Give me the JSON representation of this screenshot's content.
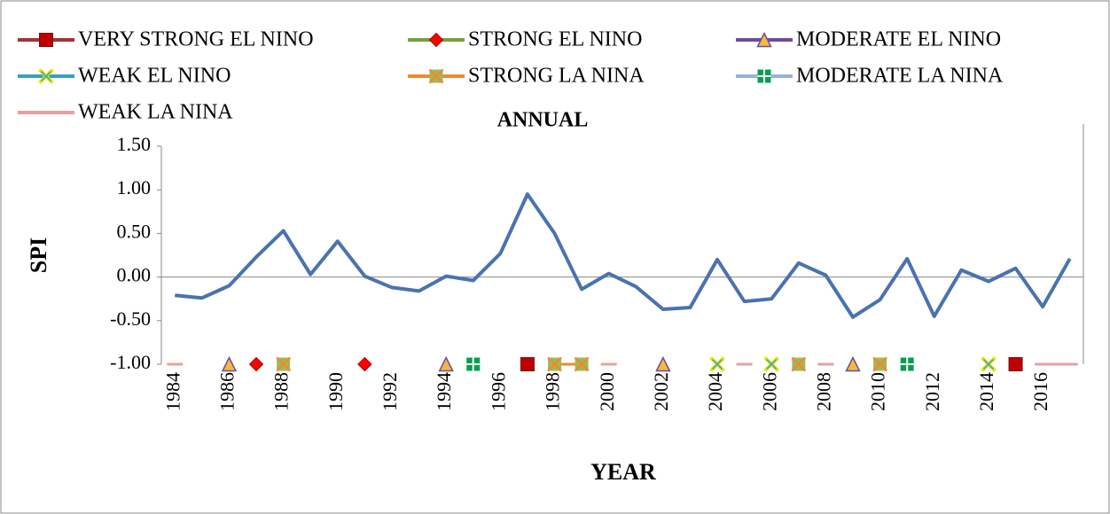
{
  "chart_data": {
    "type": "line",
    "title": "ANNUAL",
    "xlabel": "YEAR",
    "ylabel": "SPI",
    "categories": [
      "1984",
      null,
      "1986",
      null,
      "1988",
      null,
      "1990",
      null,
      "1992",
      null,
      "1994",
      null,
      "1996",
      null,
      "1998",
      null,
      "2000",
      null,
      "2002",
      null,
      "2004",
      null,
      "2006",
      null,
      "2008",
      null,
      "2010",
      null,
      "2012",
      null,
      "2014",
      null,
      "2016",
      null
    ],
    "ylim": [
      -1.0,
      1.5
    ],
    "yticks": [
      {
        "value": 1.5,
        "label": "1.50"
      },
      {
        "value": 1.0,
        "label": "1.00"
      },
      {
        "value": 0.5,
        "label": "0.50"
      },
      {
        "value": 0.0,
        "label": "0.00"
      },
      {
        "value": -0.5,
        "label": "-0.50"
      },
      {
        "value": -1.0,
        "label": "-1.00"
      }
    ],
    "main_series": {
      "color": "#4a72b0",
      "values": [
        -0.21,
        -0.24,
        -0.1,
        0.23,
        0.53,
        0.03,
        0.41,
        0.01,
        -0.12,
        -0.16,
        0.01,
        -0.04,
        0.27,
        0.95,
        0.5,
        -0.14,
        0.04,
        -0.11,
        -0.37,
        -0.35,
        0.2,
        -0.28,
        -0.25,
        0.16,
        0.02,
        -0.46,
        -0.26,
        0.21,
        -0.45,
        0.08,
        -0.05,
        0.1,
        -0.34,
        0.21
      ]
    },
    "series": [
      {
        "name": "VERY STRONG EL NINO",
        "color": "#a83232",
        "marker": "square",
        "marker_color": "#c00000",
        "values": [
          null,
          null,
          null,
          null,
          null,
          null,
          null,
          null,
          null,
          null,
          null,
          null,
          null,
          -1.0,
          null,
          null,
          null,
          null,
          null,
          null,
          null,
          null,
          null,
          null,
          null,
          null,
          null,
          null,
          null,
          null,
          null,
          -1.0,
          null,
          null
        ]
      },
      {
        "name": "STRONG EL NINO",
        "color": "#77a03c",
        "marker": "diamond",
        "marker_color": "#ff0000",
        "values": [
          null,
          null,
          null,
          -1.0,
          null,
          null,
          null,
          -1.0,
          null,
          null,
          null,
          null,
          null,
          null,
          null,
          null,
          null,
          null,
          null,
          null,
          null,
          null,
          null,
          null,
          null,
          null,
          null,
          null,
          null,
          null,
          null,
          null,
          null,
          null
        ]
      },
      {
        "name": "MODERATE EL NINO",
        "color": "#6e4c9c",
        "marker": "triangle",
        "marker_color": "#f5b93c",
        "values": [
          null,
          null,
          -1.0,
          null,
          null,
          null,
          null,
          null,
          null,
          null,
          -1.0,
          null,
          null,
          null,
          null,
          null,
          null,
          null,
          -1.0,
          null,
          null,
          null,
          null,
          null,
          null,
          -1.0,
          null,
          null,
          null,
          null,
          null,
          null,
          null,
          null
        ]
      },
      {
        "name": "WEAK EL NINO",
        "color": "#3aa0c0",
        "marker": "x",
        "marker_color": "#e8e800",
        "values": [
          null,
          null,
          null,
          null,
          null,
          null,
          null,
          null,
          null,
          null,
          null,
          null,
          null,
          null,
          null,
          null,
          null,
          null,
          null,
          null,
          -1.0,
          null,
          -1.0,
          null,
          null,
          null,
          null,
          null,
          null,
          null,
          -1.0,
          null,
          null,
          null
        ]
      },
      {
        "name": "STRONG LA NINA",
        "color": "#f08a30",
        "marker": "xsquare",
        "marker_color": "#9bbb59",
        "values": [
          null,
          null,
          null,
          null,
          -1.0,
          null,
          null,
          null,
          null,
          null,
          null,
          null,
          null,
          null,
          -1.0,
          -1.0,
          null,
          null,
          null,
          null,
          null,
          null,
          null,
          -1.0,
          null,
          null,
          -1.0,
          null,
          null,
          null,
          null,
          null,
          null,
          null
        ]
      },
      {
        "name": "MODERATE LA NINA",
        "color": "#95b3d7",
        "marker": "plus",
        "marker_color": "#00a050",
        "values": [
          null,
          null,
          null,
          null,
          null,
          null,
          null,
          null,
          null,
          null,
          null,
          -1.0,
          null,
          null,
          null,
          null,
          null,
          null,
          null,
          null,
          null,
          null,
          null,
          null,
          null,
          null,
          null,
          -1.0,
          null,
          null,
          null,
          null,
          null,
          null
        ]
      },
      {
        "name": "WEAK LA NINA",
        "color": "#e6a0a0",
        "marker": "dash",
        "marker_color": "#e6a0a0",
        "values": [
          -1.0,
          null,
          null,
          null,
          null,
          null,
          null,
          null,
          null,
          null,
          null,
          null,
          null,
          null,
          null,
          null,
          -1.0,
          null,
          null,
          null,
          null,
          -1.0,
          null,
          null,
          -1.0,
          null,
          null,
          null,
          null,
          null,
          null,
          null,
          -1.0,
          -1.0
        ]
      }
    ]
  }
}
